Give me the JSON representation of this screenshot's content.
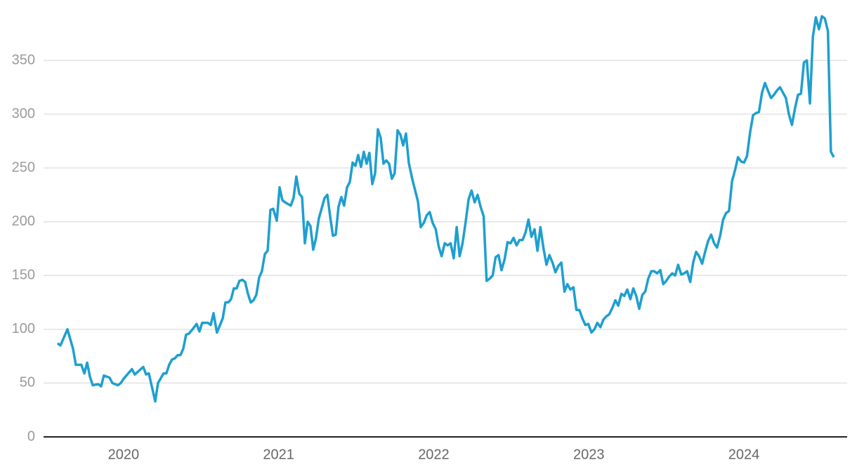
{
  "chart_data": {
    "type": "line",
    "color": "#1e9fcf",
    "grid": true,
    "xlim": [
      2019.484,
      2024.666
    ],
    "xticks": [
      2020,
      2021,
      2022,
      2023,
      2024
    ],
    "ylim": [
      0,
      400
    ],
    "yticks": [
      0,
      50,
      100,
      150,
      200,
      250,
      300,
      350
    ],
    "x": [
      2019.574,
      2019.593,
      2019.638,
      2019.674,
      2019.692,
      2019.728,
      2019.747,
      2019.765,
      2019.783,
      2019.801,
      2019.837,
      2019.855,
      2019.873,
      2019.91,
      2019.928,
      2019.964,
      2019.982,
      2020.0,
      2020.054,
      2020.072,
      2020.127,
      2020.145,
      2020.163,
      2020.204,
      2020.222,
      2020.258,
      2020.276,
      2020.294,
      2020.313,
      2020.331,
      2020.349,
      2020.367,
      2020.385,
      2020.403,
      2020.421,
      2020.439,
      2020.471,
      2020.489,
      2020.507,
      2020.544,
      2020.562,
      2020.58,
      2020.602,
      2020.639,
      2020.657,
      2020.675,
      2020.693,
      2020.711,
      2020.729,
      2020.747,
      2020.766,
      2020.784,
      2020.802,
      2020.82,
      2020.838,
      2020.856,
      2020.874,
      2020.892,
      2020.911,
      2020.929,
      2020.947,
      2020.965,
      2020.988,
      2021.006,
      2021.024,
      2021.042,
      2021.078,
      2021.096,
      2021.114,
      2021.133,
      2021.151,
      2021.169,
      2021.187,
      2021.205,
      2021.223,
      2021.241,
      2021.259,
      2021.296,
      2021.314,
      2021.332,
      2021.35,
      2021.368,
      2021.386,
      2021.404,
      2021.422,
      2021.441,
      2021.459,
      2021.477,
      2021.495,
      2021.513,
      2021.531,
      2021.549,
      2021.567,
      2021.585,
      2021.604,
      2021.622,
      2021.64,
      2021.658,
      2021.676,
      2021.694,
      2021.712,
      2021.73,
      2021.748,
      2021.767,
      2021.785,
      2021.803,
      2021.821,
      2021.839,
      2021.861,
      2021.898,
      2021.916,
      2021.936,
      2021.955,
      2021.974,
      2021.993,
      2022.013,
      2022.032,
      2022.051,
      2022.071,
      2022.09,
      2022.109,
      2022.129,
      2022.148,
      2022.167,
      2022.186,
      2022.206,
      2022.225,
      2022.244,
      2022.264,
      2022.283,
      2022.302,
      2022.322,
      2022.341,
      2022.36,
      2022.38,
      2022.399,
      2022.418,
      2022.437,
      2022.457,
      2022.476,
      2022.495,
      2022.515,
      2022.534,
      2022.553,
      2022.573,
      2022.592,
      2022.611,
      2022.63,
      2022.65,
      2022.669,
      2022.688,
      2022.708,
      2022.727,
      2022.746,
      2022.766,
      2022.785,
      2022.804,
      2022.823,
      2022.843,
      2022.862,
      2022.881,
      2022.901,
      2022.92,
      2022.939,
      2022.959,
      2022.978,
      2022.997,
      2023.017,
      2023.036,
      2023.055,
      2023.075,
      2023.094,
      2023.113,
      2023.132,
      2023.152,
      2023.171,
      2023.19,
      2023.21,
      2023.229,
      2023.248,
      2023.268,
      2023.287,
      2023.306,
      2023.325,
      2023.345,
      2023.364,
      2023.383,
      2023.403,
      2023.422,
      2023.441,
      2023.461,
      2023.48,
      2023.499,
      2023.518,
      2023.538,
      2023.557,
      2023.576,
      2023.596,
      2023.615,
      2023.634,
      2023.654,
      2023.673,
      2023.692,
      2023.711,
      2023.731,
      2023.75,
      2023.769,
      2023.789,
      2023.808,
      2023.827,
      2023.847,
      2023.866,
      2023.885,
      2023.904,
      2023.924,
      2023.943,
      2023.962,
      2023.982,
      2024.001,
      2024.02,
      2024.04,
      2024.059,
      2024.078,
      2024.097,
      2024.117,
      2024.136,
      2024.155,
      2024.175,
      2024.194,
      2024.213,
      2024.233,
      2024.252,
      2024.271,
      2024.29,
      2024.31,
      2024.329,
      2024.349,
      2024.368,
      2024.387,
      2024.406,
      2024.426,
      2024.445,
      2024.464,
      2024.484,
      2024.503,
      2024.522,
      2024.542,
      2024.561,
      2024.58
    ],
    "values": [
      87,
      85,
      100,
      82,
      67,
      67,
      59,
      69,
      56,
      48,
      49,
      47,
      57,
      55,
      50,
      48,
      50,
      54,
      63,
      58,
      65,
      58,
      59,
      33,
      50,
      59,
      59,
      67,
      72,
      73,
      76,
      76,
      82,
      95,
      96,
      99,
      105,
      98,
      106,
      106,
      104,
      115,
      97,
      110,
      125,
      125,
      128,
      138,
      138,
      145,
      146,
      144,
      133,
      125,
      127,
      132,
      148,
      154,
      170,
      173,
      211,
      212,
      201,
      232,
      220,
      218,
      215,
      222,
      242,
      226,
      223,
      180,
      200,
      196,
      174,
      185,
      203,
      222,
      225,
      205,
      187,
      188,
      214,
      223,
      215,
      232,
      237,
      255,
      252,
      262,
      251,
      265,
      254,
      264,
      235,
      245,
      286,
      278,
      254,
      257,
      254,
      240,
      245,
      285,
      281,
      271,
      282,
      255,
      240,
      219,
      195,
      199,
      206,
      209,
      199,
      193,
      177,
      168,
      180,
      178,
      180,
      166,
      195,
      168,
      180,
      200,
      221,
      229,
      218,
      225,
      214,
      205,
      145,
      147,
      150,
      167,
      169,
      155,
      165,
      181,
      180,
      185,
      178,
      183,
      183,
      190,
      202,
      186,
      193,
      173,
      195,
      175,
      160,
      169,
      162,
      153,
      159,
      162,
      135,
      142,
      137,
      139,
      118,
      118,
      110,
      104,
      105,
      97,
      100,
      106,
      102,
      109,
      112,
      114,
      120,
      127,
      122,
      133,
      131,
      137,
      128,
      138,
      131,
      119,
      132,
      135,
      147,
      154,
      154,
      152,
      155,
      142,
      145,
      149,
      152,
      150,
      160,
      151,
      152,
      154,
      144,
      162,
      172,
      168,
      161,
      172,
      182,
      188,
      180,
      176,
      187,
      202,
      208,
      210,
      238,
      248,
      260,
      256,
      255,
      261,
      283,
      299,
      301,
      302,
      320,
      329,
      322,
      315,
      318,
      322,
      325,
      320,
      315,
      300,
      290,
      305,
      318,
      319,
      348,
      350,
      310,
      372,
      390,
      379,
      391,
      389,
      377,
      265,
      260
    ]
  }
}
